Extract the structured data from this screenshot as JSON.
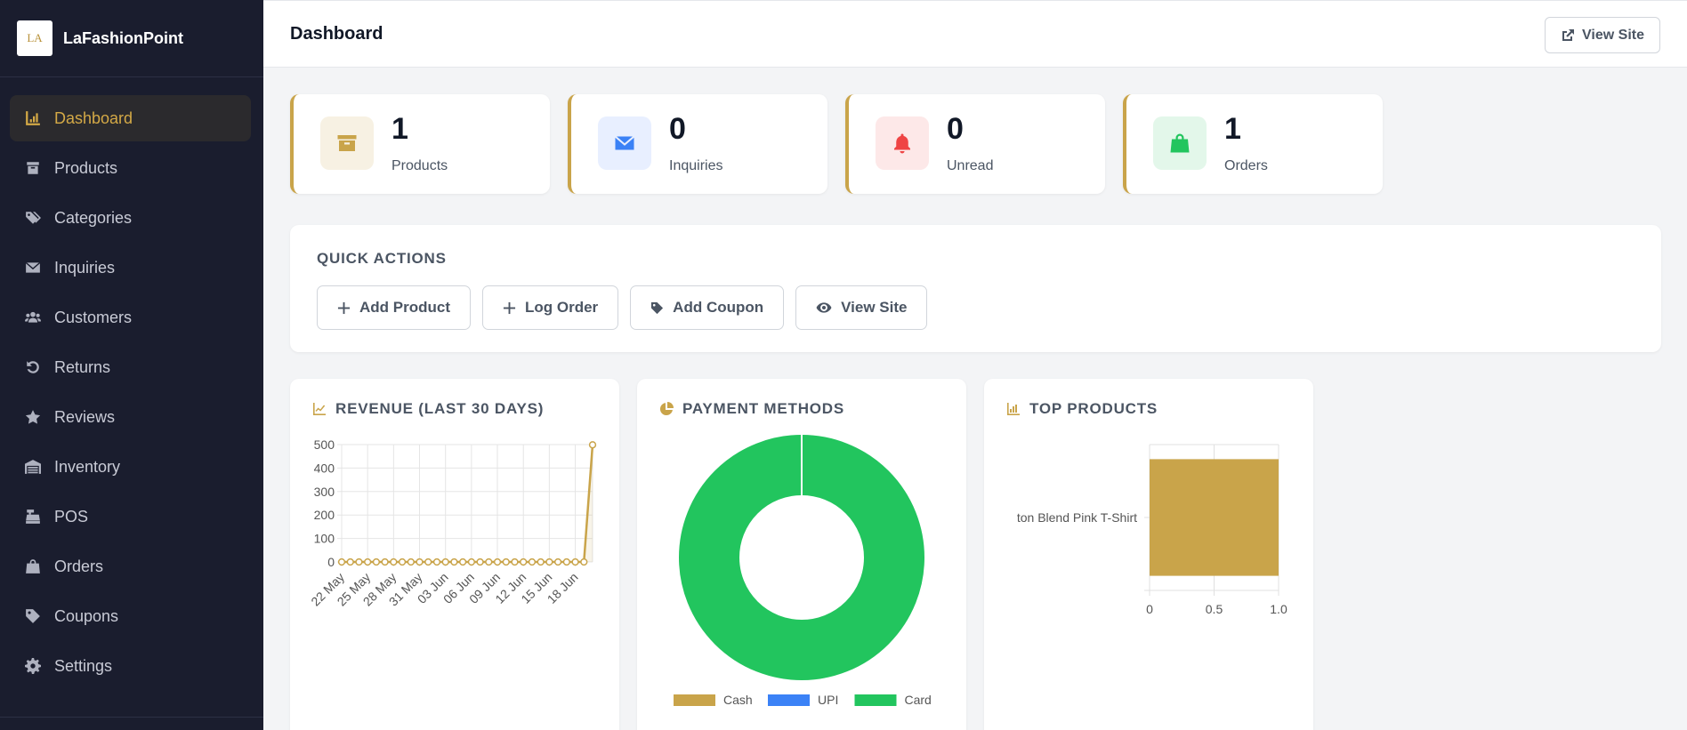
{
  "app": {
    "brand": "LaFashionPoint",
    "logo_text": "LA"
  },
  "sidebar": {
    "items": [
      {
        "label": "Dashboard",
        "icon": "chart-bar-icon",
        "active": true
      },
      {
        "label": "Products",
        "icon": "box-icon",
        "active": false
      },
      {
        "label": "Categories",
        "icon": "tags-icon",
        "active": false
      },
      {
        "label": "Inquiries",
        "icon": "envelope-icon",
        "active": false
      },
      {
        "label": "Customers",
        "icon": "users-icon",
        "active": false
      },
      {
        "label": "Returns",
        "icon": "undo-icon",
        "active": false
      },
      {
        "label": "Reviews",
        "icon": "star-icon",
        "active": false
      },
      {
        "label": "Inventory",
        "icon": "warehouse-icon",
        "active": false
      },
      {
        "label": "POS",
        "icon": "cash-register-icon",
        "active": false
      },
      {
        "label": "Orders",
        "icon": "shopping-bag-icon",
        "active": false
      },
      {
        "label": "Coupons",
        "icon": "tag-icon",
        "active": false
      },
      {
        "label": "Settings",
        "icon": "gear-icon",
        "active": false
      }
    ]
  },
  "header": {
    "title": "Dashboard",
    "view_site": "View Site"
  },
  "stats": [
    {
      "value": "1",
      "label": "Products",
      "icon": "box-icon",
      "color": "#c9a44a",
      "bg": "#f7f1e3"
    },
    {
      "value": "0",
      "label": "Inquiries",
      "icon": "envelope-icon",
      "color": "#3b82f6",
      "bg": "#e8efff"
    },
    {
      "value": "0",
      "label": "Unread",
      "icon": "bell-icon",
      "color": "#ef4444",
      "bg": "#fde8e8"
    },
    {
      "value": "1",
      "label": "Orders",
      "icon": "shopping-bag-icon",
      "color": "#22c55e",
      "bg": "#e3f7ea"
    }
  ],
  "quick_actions": {
    "title": "QUICK ACTIONS",
    "buttons": [
      {
        "label": "Add Product",
        "icon": "plus-icon"
      },
      {
        "label": "Log Order",
        "icon": "plus-icon"
      },
      {
        "label": "Add Coupon",
        "icon": "tag-icon"
      },
      {
        "label": "View Site",
        "icon": "eye-icon"
      }
    ]
  },
  "charts": {
    "revenue_title": "REVENUE (LAST 30 DAYS)",
    "payment_title": "PAYMENT METHODS",
    "top_title": "TOP PRODUCTS"
  },
  "chart_data": [
    {
      "type": "line",
      "title": "REVENUE (LAST 30 DAYS)",
      "x_tick_labels": [
        "22 May",
        "25 May",
        "28 May",
        "31 May",
        "03 Jun",
        "06 Jun",
        "09 Jun",
        "12 Jun",
        "15 Jun",
        "18 Jun"
      ],
      "x": [
        "22 May",
        "23 May",
        "24 May",
        "25 May",
        "26 May",
        "27 May",
        "28 May",
        "29 May",
        "30 May",
        "31 May",
        "01 Jun",
        "02 Jun",
        "03 Jun",
        "04 Jun",
        "05 Jun",
        "06 Jun",
        "07 Jun",
        "08 Jun",
        "09 Jun",
        "10 Jun",
        "11 Jun",
        "12 Jun",
        "13 Jun",
        "14 Jun",
        "15 Jun",
        "16 Jun",
        "17 Jun",
        "18 Jun",
        "19 Jun",
        "20 Jun"
      ],
      "series": [
        {
          "values": [
            0,
            0,
            0,
            0,
            0,
            0,
            0,
            0,
            0,
            0,
            0,
            0,
            0,
            0,
            0,
            0,
            0,
            0,
            0,
            0,
            0,
            0,
            0,
            0,
            0,
            0,
            0,
            0,
            0,
            499
          ],
          "color": "#c9a44a"
        }
      ],
      "ylim": [
        0,
        500
      ],
      "y_ticks": [
        0,
        100,
        200,
        300,
        400,
        500
      ],
      "grid": true
    },
    {
      "type": "pie",
      "title": "PAYMENT METHODS",
      "donut": true,
      "labels": [
        "Cash",
        "UPI",
        "Card"
      ],
      "values": [
        0,
        0,
        1
      ],
      "colors": [
        "#c9a44a",
        "#3b82f6",
        "#22c55e"
      ],
      "legend": "bottom"
    },
    {
      "type": "bar",
      "title": "TOP PRODUCTS",
      "orientation": "horizontal",
      "categories": [
        "Cotton Blend Pink T-Shirt"
      ],
      "visible_category_label": "ton Blend Pink T-Shirt",
      "values": [
        1
      ],
      "xlim": [
        0,
        1.0
      ],
      "x_ticks": [
        "0",
        "0.5",
        "1.0"
      ],
      "color": "#c9a44a"
    }
  ]
}
